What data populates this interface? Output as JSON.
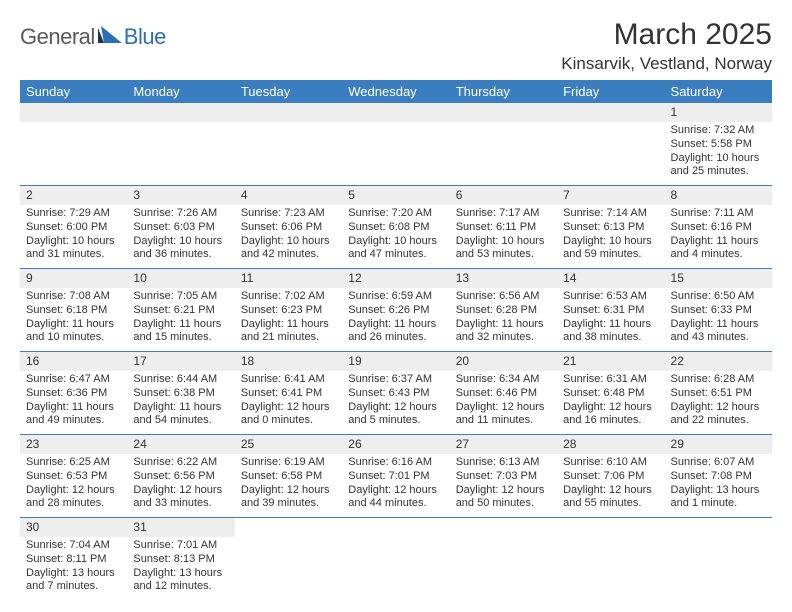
{
  "logo": {
    "text1": "General",
    "text2": "Blue",
    "gray": "#5a5a5a",
    "blue": "#2d6fb5"
  },
  "title": "March 2025",
  "location": "Kinsarvik, Vestland, Norway",
  "colors": {
    "header_bg": "#3a7ebf",
    "header_fg": "#ffffff",
    "daynum_bg": "#eeeeee",
    "cell_border": "#3a7ebf",
    "text": "#333333",
    "page_bg": "#ffffff"
  },
  "typography": {
    "title_fontsize": 30,
    "location_fontsize": 17,
    "weekday_fontsize": 13,
    "daynum_fontsize": 12,
    "body_fontsize": 11
  },
  "weekdays": [
    "Sunday",
    "Monday",
    "Tuesday",
    "Wednesday",
    "Thursday",
    "Friday",
    "Saturday"
  ],
  "weeks": [
    [
      null,
      null,
      null,
      null,
      null,
      null,
      {
        "n": "1",
        "sr": "Sunrise: 7:32 AM",
        "ss": "Sunset: 5:58 PM",
        "dl": "Daylight: 10 hours and 25 minutes."
      }
    ],
    [
      {
        "n": "2",
        "sr": "Sunrise: 7:29 AM",
        "ss": "Sunset: 6:00 PM",
        "dl": "Daylight: 10 hours and 31 minutes."
      },
      {
        "n": "3",
        "sr": "Sunrise: 7:26 AM",
        "ss": "Sunset: 6:03 PM",
        "dl": "Daylight: 10 hours and 36 minutes."
      },
      {
        "n": "4",
        "sr": "Sunrise: 7:23 AM",
        "ss": "Sunset: 6:06 PM",
        "dl": "Daylight: 10 hours and 42 minutes."
      },
      {
        "n": "5",
        "sr": "Sunrise: 7:20 AM",
        "ss": "Sunset: 6:08 PM",
        "dl": "Daylight: 10 hours and 47 minutes."
      },
      {
        "n": "6",
        "sr": "Sunrise: 7:17 AM",
        "ss": "Sunset: 6:11 PM",
        "dl": "Daylight: 10 hours and 53 minutes."
      },
      {
        "n": "7",
        "sr": "Sunrise: 7:14 AM",
        "ss": "Sunset: 6:13 PM",
        "dl": "Daylight: 10 hours and 59 minutes."
      },
      {
        "n": "8",
        "sr": "Sunrise: 7:11 AM",
        "ss": "Sunset: 6:16 PM",
        "dl": "Daylight: 11 hours and 4 minutes."
      }
    ],
    [
      {
        "n": "9",
        "sr": "Sunrise: 7:08 AM",
        "ss": "Sunset: 6:18 PM",
        "dl": "Daylight: 11 hours and 10 minutes."
      },
      {
        "n": "10",
        "sr": "Sunrise: 7:05 AM",
        "ss": "Sunset: 6:21 PM",
        "dl": "Daylight: 11 hours and 15 minutes."
      },
      {
        "n": "11",
        "sr": "Sunrise: 7:02 AM",
        "ss": "Sunset: 6:23 PM",
        "dl": "Daylight: 11 hours and 21 minutes."
      },
      {
        "n": "12",
        "sr": "Sunrise: 6:59 AM",
        "ss": "Sunset: 6:26 PM",
        "dl": "Daylight: 11 hours and 26 minutes."
      },
      {
        "n": "13",
        "sr": "Sunrise: 6:56 AM",
        "ss": "Sunset: 6:28 PM",
        "dl": "Daylight: 11 hours and 32 minutes."
      },
      {
        "n": "14",
        "sr": "Sunrise: 6:53 AM",
        "ss": "Sunset: 6:31 PM",
        "dl": "Daylight: 11 hours and 38 minutes."
      },
      {
        "n": "15",
        "sr": "Sunrise: 6:50 AM",
        "ss": "Sunset: 6:33 PM",
        "dl": "Daylight: 11 hours and 43 minutes."
      }
    ],
    [
      {
        "n": "16",
        "sr": "Sunrise: 6:47 AM",
        "ss": "Sunset: 6:36 PM",
        "dl": "Daylight: 11 hours and 49 minutes."
      },
      {
        "n": "17",
        "sr": "Sunrise: 6:44 AM",
        "ss": "Sunset: 6:38 PM",
        "dl": "Daylight: 11 hours and 54 minutes."
      },
      {
        "n": "18",
        "sr": "Sunrise: 6:41 AM",
        "ss": "Sunset: 6:41 PM",
        "dl": "Daylight: 12 hours and 0 minutes."
      },
      {
        "n": "19",
        "sr": "Sunrise: 6:37 AM",
        "ss": "Sunset: 6:43 PM",
        "dl": "Daylight: 12 hours and 5 minutes."
      },
      {
        "n": "20",
        "sr": "Sunrise: 6:34 AM",
        "ss": "Sunset: 6:46 PM",
        "dl": "Daylight: 12 hours and 11 minutes."
      },
      {
        "n": "21",
        "sr": "Sunrise: 6:31 AM",
        "ss": "Sunset: 6:48 PM",
        "dl": "Daylight: 12 hours and 16 minutes."
      },
      {
        "n": "22",
        "sr": "Sunrise: 6:28 AM",
        "ss": "Sunset: 6:51 PM",
        "dl": "Daylight: 12 hours and 22 minutes."
      }
    ],
    [
      {
        "n": "23",
        "sr": "Sunrise: 6:25 AM",
        "ss": "Sunset: 6:53 PM",
        "dl": "Daylight: 12 hours and 28 minutes."
      },
      {
        "n": "24",
        "sr": "Sunrise: 6:22 AM",
        "ss": "Sunset: 6:56 PM",
        "dl": "Daylight: 12 hours and 33 minutes."
      },
      {
        "n": "25",
        "sr": "Sunrise: 6:19 AM",
        "ss": "Sunset: 6:58 PM",
        "dl": "Daylight: 12 hours and 39 minutes."
      },
      {
        "n": "26",
        "sr": "Sunrise: 6:16 AM",
        "ss": "Sunset: 7:01 PM",
        "dl": "Daylight: 12 hours and 44 minutes."
      },
      {
        "n": "27",
        "sr": "Sunrise: 6:13 AM",
        "ss": "Sunset: 7:03 PM",
        "dl": "Daylight: 12 hours and 50 minutes."
      },
      {
        "n": "28",
        "sr": "Sunrise: 6:10 AM",
        "ss": "Sunset: 7:06 PM",
        "dl": "Daylight: 12 hours and 55 minutes."
      },
      {
        "n": "29",
        "sr": "Sunrise: 6:07 AM",
        "ss": "Sunset: 7:08 PM",
        "dl": "Daylight: 13 hours and 1 minute."
      }
    ],
    [
      {
        "n": "30",
        "sr": "Sunrise: 7:04 AM",
        "ss": "Sunset: 8:11 PM",
        "dl": "Daylight: 13 hours and 7 minutes."
      },
      {
        "n": "31",
        "sr": "Sunrise: 7:01 AM",
        "ss": "Sunset: 8:13 PM",
        "dl": "Daylight: 13 hours and 12 minutes."
      },
      null,
      null,
      null,
      null,
      null
    ]
  ]
}
